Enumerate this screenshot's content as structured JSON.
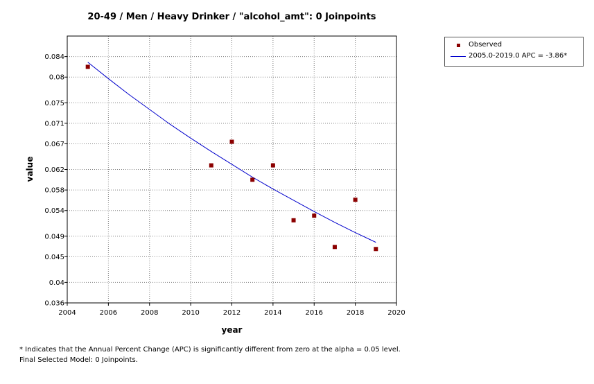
{
  "chart_data": {
    "type": "scatter",
    "title": "20-49 / Men / Heavy Drinker / \"alcohol_amt\": 0 Joinpoints",
    "xlabel": "year",
    "ylabel": "value",
    "xlim": [
      2004,
      2020
    ],
    "ylim": [
      0.036,
      0.088
    ],
    "x_ticks": [
      "2004",
      "2006",
      "2008",
      "2010",
      "2012",
      "2014",
      "2016",
      "2018",
      "2020"
    ],
    "y_ticks": [
      "0.036",
      "0.04",
      "0.045",
      "0.049",
      "0.054",
      "0.058",
      "0.062",
      "0.067",
      "0.071",
      "0.075",
      "0.08",
      "0.084"
    ],
    "grid": true,
    "legend_position": "outside-right",
    "series": [
      {
        "name": "Observed",
        "kind": "points",
        "color": "#8b0000",
        "x": [
          2005,
          2011,
          2012,
          2013,
          2014,
          2015,
          2016,
          2017,
          2018,
          2019
        ],
        "y": [
          0.082,
          0.0628,
          0.0674,
          0.06,
          0.0628,
          0.0521,
          0.053,
          0.0469,
          0.0561,
          0.0465
        ]
      },
      {
        "name": "2005.0-2019.0 APC  = -3.86*",
        "kind": "line",
        "color": "#0000cc",
        "x": [
          2005,
          2006,
          2007,
          2008,
          2009,
          2010,
          2011,
          2012,
          2013,
          2014,
          2015,
          2016,
          2017,
          2018,
          2019
        ],
        "y": [
          0.0829,
          0.0797,
          0.0766,
          0.0737,
          0.0708,
          0.0681,
          0.0655,
          0.063,
          0.0605,
          0.0582,
          0.056,
          0.0538,
          0.0517,
          0.0497,
          0.0478
        ]
      }
    ]
  },
  "footnotes": [
    "* Indicates that the Annual Percent Change (APC) is significantly different from zero at the alpha = 0.05 level.",
    "Final Selected Model: 0 Joinpoints."
  ]
}
